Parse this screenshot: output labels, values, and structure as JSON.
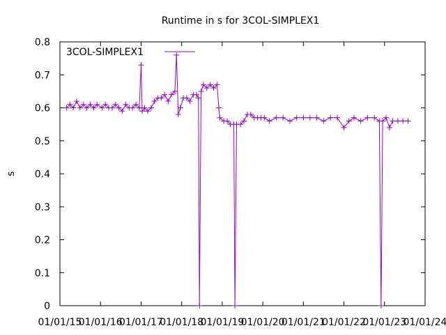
{
  "chart_data": {
    "type": "line",
    "title": "Runtime in s for 3COL-SIMPLEX1",
    "xlabel": "",
    "ylabel": "s",
    "x_type": "date",
    "xlim": [
      "2015-01-01",
      "2024-01-01"
    ],
    "ylim": [
      0,
      0.8
    ],
    "x_ticks": [
      "01/01/15",
      "01/01/16",
      "01/01/17",
      "01/01/18",
      "01/01/19",
      "01/01/20",
      "01/01/21",
      "01/01/22",
      "01/01/23",
      "01/01/24"
    ],
    "y_ticks": [
      "0",
      "0.1",
      "0.2",
      "0.3",
      "0.4",
      "0.5",
      "0.6",
      "0.7",
      "0.8"
    ],
    "legend_position": "top-left",
    "grid": false,
    "color": "#9400d3",
    "marker": "plus",
    "series": [
      {
        "name": "3COL-SIMPLEX1",
        "points": [
          [
            "2015-03-01",
            0.6
          ],
          [
            "2015-04-01",
            0.61
          ],
          [
            "2015-05-01",
            0.6
          ],
          [
            "2015-06-01",
            0.62
          ],
          [
            "2015-07-01",
            0.6
          ],
          [
            "2015-08-01",
            0.61
          ],
          [
            "2015-09-01",
            0.6
          ],
          [
            "2015-10-01",
            0.61
          ],
          [
            "2015-11-01",
            0.6
          ],
          [
            "2015-12-01",
            0.61
          ],
          [
            "2016-01-15",
            0.6
          ],
          [
            "2016-02-15",
            0.61
          ],
          [
            "2016-03-15",
            0.6
          ],
          [
            "2016-04-15",
            0.6
          ],
          [
            "2016-05-15",
            0.61
          ],
          [
            "2016-06-15",
            0.6
          ],
          [
            "2016-07-15",
            0.59
          ],
          [
            "2016-08-15",
            0.61
          ],
          [
            "2016-09-15",
            0.6
          ],
          [
            "2016-10-15",
            0.6
          ],
          [
            "2016-11-15",
            0.61
          ],
          [
            "2016-12-15",
            0.6
          ],
          [
            "2017-01-01",
            0.73
          ],
          [
            "2017-01-10",
            0.59
          ],
          [
            "2017-02-01",
            0.6
          ],
          [
            "2017-03-01",
            0.59
          ],
          [
            "2017-04-01",
            0.6
          ],
          [
            "2017-05-01",
            0.62
          ],
          [
            "2017-06-01",
            0.63
          ],
          [
            "2017-07-01",
            0.63
          ],
          [
            "2017-08-01",
            0.64
          ],
          [
            "2017-09-01",
            0.62
          ],
          [
            "2017-10-01",
            0.64
          ],
          [
            "2017-11-01",
            0.65
          ],
          [
            "2017-11-15",
            0.76
          ],
          [
            "2017-12-01",
            0.58
          ],
          [
            "2017-12-20",
            0.6
          ],
          [
            "2018-01-15",
            0.63
          ],
          [
            "2018-02-15",
            0.63
          ],
          [
            "2018-03-15",
            0.62
          ],
          [
            "2018-04-15",
            0.64
          ],
          [
            "2018-05-15",
            0.64
          ],
          [
            "2018-06-01",
            0.63
          ],
          [
            "2018-06-10",
            0.0
          ],
          [
            "2018-06-25",
            0.65
          ],
          [
            "2018-07-15",
            0.67
          ],
          [
            "2018-08-15",
            0.66
          ],
          [
            "2018-09-15",
            0.67
          ],
          [
            "2018-10-15",
            0.66
          ],
          [
            "2018-11-15",
            0.67
          ],
          [
            "2018-12-01",
            0.6
          ],
          [
            "2018-12-10",
            0.57
          ],
          [
            "2019-01-15",
            0.56
          ],
          [
            "2019-02-15",
            0.56
          ],
          [
            "2019-03-15",
            0.55
          ],
          [
            "2019-04-15",
            0.55
          ],
          [
            "2019-04-25",
            0.0
          ],
          [
            "2019-05-10",
            0.55
          ],
          [
            "2019-06-15",
            0.55
          ],
          [
            "2019-07-15",
            0.56
          ],
          [
            "2019-08-15",
            0.58
          ],
          [
            "2019-09-15",
            0.58
          ],
          [
            "2019-10-15",
            0.57
          ],
          [
            "2019-11-15",
            0.57
          ],
          [
            "2019-12-15",
            0.57
          ],
          [
            "2020-01-15",
            0.57
          ],
          [
            "2020-03-01",
            0.56
          ],
          [
            "2020-05-01",
            0.57
          ],
          [
            "2020-07-01",
            0.57
          ],
          [
            "2020-09-01",
            0.56
          ],
          [
            "2020-11-01",
            0.57
          ],
          [
            "2021-01-01",
            0.57
          ],
          [
            "2021-03-01",
            0.57
          ],
          [
            "2021-05-01",
            0.57
          ],
          [
            "2021-07-01",
            0.56
          ],
          [
            "2021-09-01",
            0.57
          ],
          [
            "2021-11-01",
            0.57
          ],
          [
            "2022-01-01",
            0.54
          ],
          [
            "2022-02-15",
            0.56
          ],
          [
            "2022-04-01",
            0.57
          ],
          [
            "2022-06-01",
            0.56
          ],
          [
            "2022-08-01",
            0.57
          ],
          [
            "2022-10-01",
            0.57
          ],
          [
            "2022-11-15",
            0.56
          ],
          [
            "2022-12-01",
            0.0
          ],
          [
            "2022-12-15",
            0.56
          ],
          [
            "2023-01-15",
            0.57
          ],
          [
            "2023-02-15",
            0.54
          ],
          [
            "2023-03-15",
            0.56
          ],
          [
            "2023-05-01",
            0.56
          ],
          [
            "2023-06-15",
            0.56
          ],
          [
            "2023-08-01",
            0.56
          ]
        ]
      }
    ]
  }
}
